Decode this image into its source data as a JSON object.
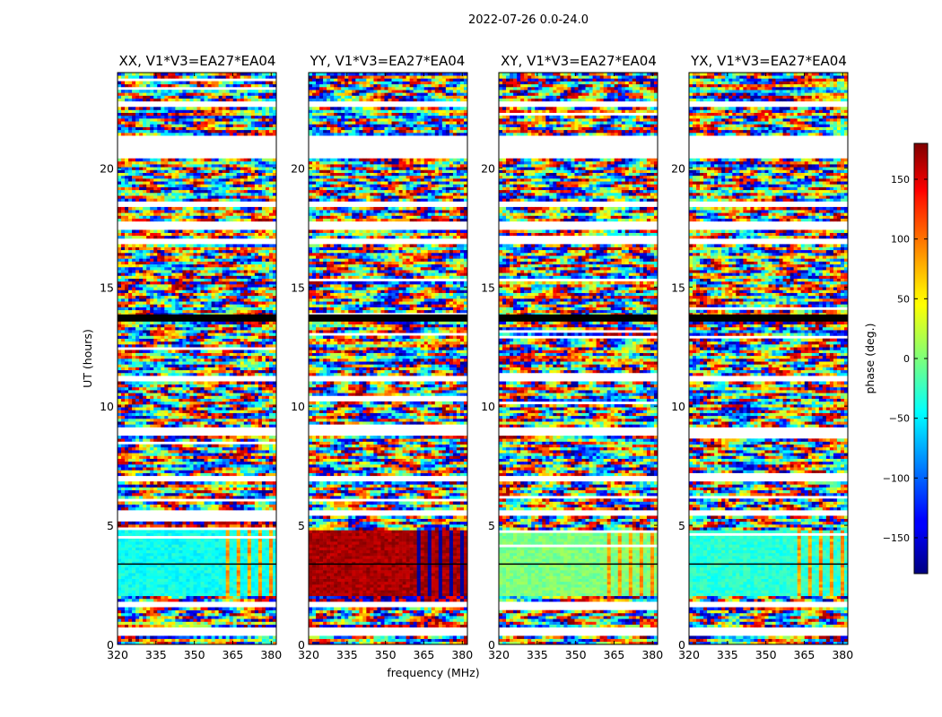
{
  "figure": {
    "suptitle": "2022-07-26 0.0-24.0",
    "ylabel": "UT (hours)",
    "xlabel": "frequency (MHz)",
    "colorbar_label": "phase (deg.)"
  },
  "chart_data": [
    {
      "type": "heatmap",
      "title": "XX, V1*V3=EA27*EA04",
      "polarization": "XX",
      "x_range_mhz": [
        320,
        382
      ],
      "y_range_hours": [
        0,
        24
      ],
      "xticks": [
        320,
        335,
        350,
        365,
        380
      ],
      "yticks": [
        0,
        5,
        10,
        15,
        20
      ],
      "quiet_block": {
        "hours": [
          2.0,
          4.7
        ],
        "phase_deg": -40,
        "bright_after_mhz": 361
      }
    },
    {
      "type": "heatmap",
      "title": "YY, V1*V3=EA27*EA04",
      "polarization": "YY",
      "x_range_mhz": [
        320,
        382
      ],
      "y_range_hours": [
        0,
        24
      ],
      "xticks": [
        320,
        335,
        350,
        365,
        380
      ],
      "yticks": [
        0,
        5,
        10,
        15,
        20
      ],
      "quiet_block": {
        "hours": [
          2.0,
          4.8
        ],
        "phase_deg": 165,
        "bright_after_mhz": 361
      }
    },
    {
      "type": "heatmap",
      "title": "XY, V1*V3=EA27*EA04",
      "polarization": "XY",
      "x_range_mhz": [
        320,
        382
      ],
      "y_range_hours": [
        0,
        24
      ],
      "xticks": [
        320,
        335,
        350,
        365,
        380
      ],
      "yticks": [
        0,
        5,
        10,
        15,
        20
      ],
      "quiet_block": {
        "hours": [
          2.0,
          4.7
        ],
        "phase_deg": 0,
        "bright_after_mhz": 361
      }
    },
    {
      "type": "heatmap",
      "title": "YX, V1*V3=EA27*EA04",
      "polarization": "YX",
      "x_range_mhz": [
        320,
        382
      ],
      "y_range_hours": [
        0,
        24
      ],
      "xticks": [
        320,
        335,
        350,
        365,
        380
      ],
      "yticks": [
        0,
        5,
        10,
        15,
        20
      ],
      "quiet_block": {
        "hours": [
          2.0,
          4.7
        ],
        "phase_deg": -30,
        "bright_after_mhz": 361
      }
    }
  ],
  "colorbar": {
    "colormap": "jet",
    "range_deg": [
      -180,
      180
    ],
    "ticks": [
      150,
      100,
      50,
      0,
      -50,
      -100,
      -150
    ],
    "tick_labels": [
      "150",
      "100",
      "50",
      "0",
      "−50",
      "−100",
      "−150"
    ]
  },
  "flagged_bands_hours": [
    [
      0.4,
      0.7
    ],
    [
      1.6,
      1.8
    ],
    [
      5.4,
      5.6
    ],
    [
      6.8,
      7.1
    ],
    [
      8.8,
      9.1
    ],
    [
      11.0,
      11.3
    ],
    [
      13.5,
      13.8
    ],
    [
      16.8,
      17.0
    ],
    [
      17.4,
      17.8
    ],
    [
      18.3,
      18.6
    ],
    [
      20.4,
      21.4
    ],
    [
      22.6,
      22.8
    ]
  ],
  "colors": {
    "flag_black": "#000000",
    "missing": "#ffffff",
    "colorbar_under": "#000080",
    "colorbar_over": "#800000"
  }
}
